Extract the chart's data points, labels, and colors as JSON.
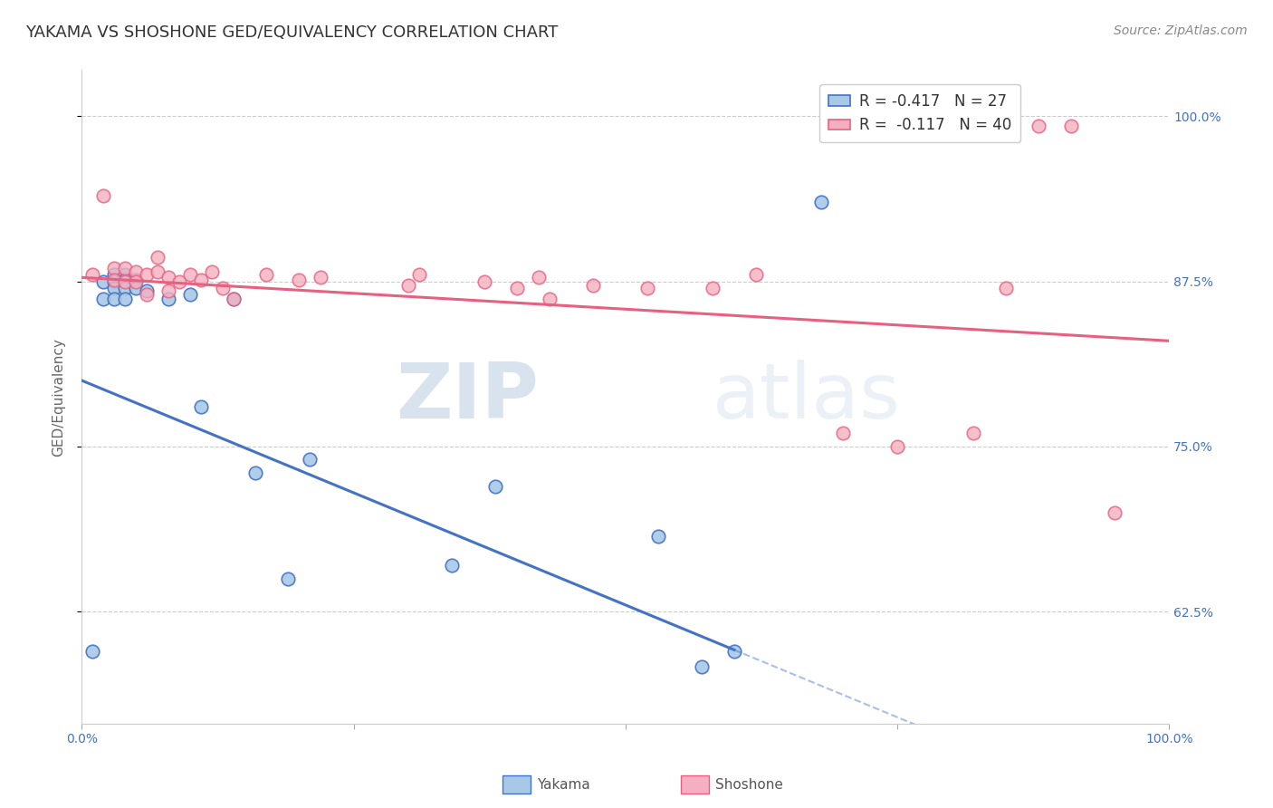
{
  "title": "YAKAMA VS SHOSHONE GED/EQUIVALENCY CORRELATION CHART",
  "source": "Source: ZipAtlas.com",
  "ylabel": "GED/Equivalency",
  "xmin": 0.0,
  "xmax": 1.0,
  "ymin": 0.54,
  "ymax": 1.035,
  "yticks": [
    0.625,
    0.75,
    0.875,
    1.0
  ],
  "ytick_labels": [
    "62.5%",
    "75.0%",
    "87.5%",
    "100.0%"
  ],
  "xticks": [
    0.0,
    0.25,
    0.5,
    0.75,
    1.0
  ],
  "xtick_labels": [
    "0.0%",
    "",
    "",
    "",
    "100.0%"
  ],
  "legend_r_yakama": "-0.417",
  "legend_n_yakama": "27",
  "legend_r_shoshone": "-0.117",
  "legend_n_shoshone": "40",
  "yakama_color": "#a8c8e8",
  "shoshone_color": "#f4b0c0",
  "yakama_line_color": "#4472c4",
  "shoshone_line_color": "#e86080",
  "watermark_zip": "ZIP",
  "watermark_atlas": "atlas",
  "yakama_x": [
    0.01,
    0.02,
    0.02,
    0.03,
    0.03,
    0.03,
    0.03,
    0.04,
    0.04,
    0.04,
    0.04,
    0.05,
    0.05,
    0.06,
    0.08,
    0.1,
    0.11,
    0.14,
    0.16,
    0.19,
    0.21,
    0.34,
    0.38,
    0.53,
    0.57,
    0.6,
    0.68
  ],
  "yakama_y": [
    0.595,
    0.875,
    0.862,
    0.88,
    0.875,
    0.87,
    0.862,
    0.88,
    0.876,
    0.87,
    0.862,
    0.876,
    0.87,
    0.868,
    0.862,
    0.865,
    0.78,
    0.862,
    0.73,
    0.65,
    0.74,
    0.66,
    0.72,
    0.682,
    0.583,
    0.595,
    0.935
  ],
  "shoshone_x": [
    0.01,
    0.02,
    0.03,
    0.03,
    0.04,
    0.04,
    0.05,
    0.05,
    0.06,
    0.06,
    0.07,
    0.07,
    0.08,
    0.08,
    0.09,
    0.1,
    0.11,
    0.12,
    0.13,
    0.14,
    0.17,
    0.2,
    0.22,
    0.3,
    0.31,
    0.37,
    0.4,
    0.42,
    0.43,
    0.47,
    0.52,
    0.58,
    0.62,
    0.7,
    0.75,
    0.82,
    0.85,
    0.88,
    0.91,
    0.95
  ],
  "shoshone_y": [
    0.88,
    0.94,
    0.885,
    0.876,
    0.885,
    0.875,
    0.882,
    0.875,
    0.88,
    0.865,
    0.893,
    0.882,
    0.878,
    0.868,
    0.875,
    0.88,
    0.876,
    0.882,
    0.87,
    0.862,
    0.88,
    0.876,
    0.878,
    0.872,
    0.88,
    0.875,
    0.87,
    0.878,
    0.862,
    0.872,
    0.87,
    0.87,
    0.88,
    0.76,
    0.75,
    0.76,
    0.87,
    0.993,
    0.993,
    0.7
  ],
  "background_color": "#ffffff",
  "grid_color": "#cccccc",
  "title_fontsize": 13,
  "tick_fontsize": 10,
  "source_fontsize": 10,
  "legend_fontsize": 12
}
